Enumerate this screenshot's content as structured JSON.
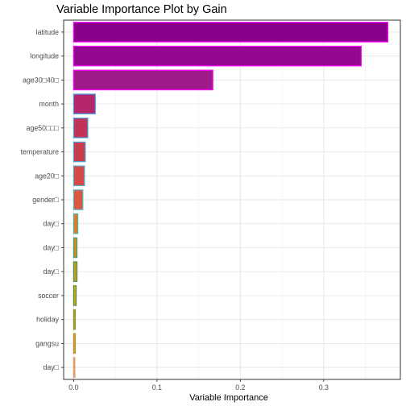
{
  "chart_data": {
    "type": "bar",
    "orientation": "horizontal",
    "title": "Variable Importance Plot by Gain",
    "xlabel": "Variable Importance",
    "ylabel": "",
    "xlim": [
      -0.012,
      0.392
    ],
    "xticks": [
      0.0,
      0.1,
      0.2,
      0.3
    ],
    "xtick_labels": [
      "0.0",
      "0.1",
      "0.2",
      "0.3"
    ],
    "grid": true,
    "legend": "none",
    "categories": [
      "latitude",
      "longitude",
      "age30□40□",
      "month",
      "age50□□□",
      "temperature",
      "age20□",
      "gender□",
      "day□",
      "day□",
      "day□",
      "soccer",
      "holiday",
      "gangsu",
      "day□"
    ],
    "values": [
      0.377,
      0.345,
      0.167,
      0.026,
      0.017,
      0.014,
      0.013,
      0.011,
      0.005,
      0.004,
      0.004,
      0.003,
      0.002,
      0.002,
      0.001
    ],
    "fill_colors": [
      "#8B008B",
      "#940790",
      "#A01A89",
      "#B4276B",
      "#C03258",
      "#C93C4C",
      "#D54A45",
      "#D9593E",
      "#D67E2D",
      "#C98D1F",
      "#C49E17",
      "#C7A613",
      "#D2A315",
      "#E2962A",
      "#EE8A66"
    ],
    "border_colors": [
      "#FF00FF",
      "#FF00FF",
      "#FF00FF",
      "#3FA0E8",
      "#45A6E8",
      "#46ACDB",
      "#46B2CF",
      "#47B8C0",
      "#52B3A5",
      "#4A9E76",
      "#4A8F5B",
      "#5D8A3C",
      "#8A8F2E",
      "#B7942C",
      "#E79A6B"
    ]
  }
}
